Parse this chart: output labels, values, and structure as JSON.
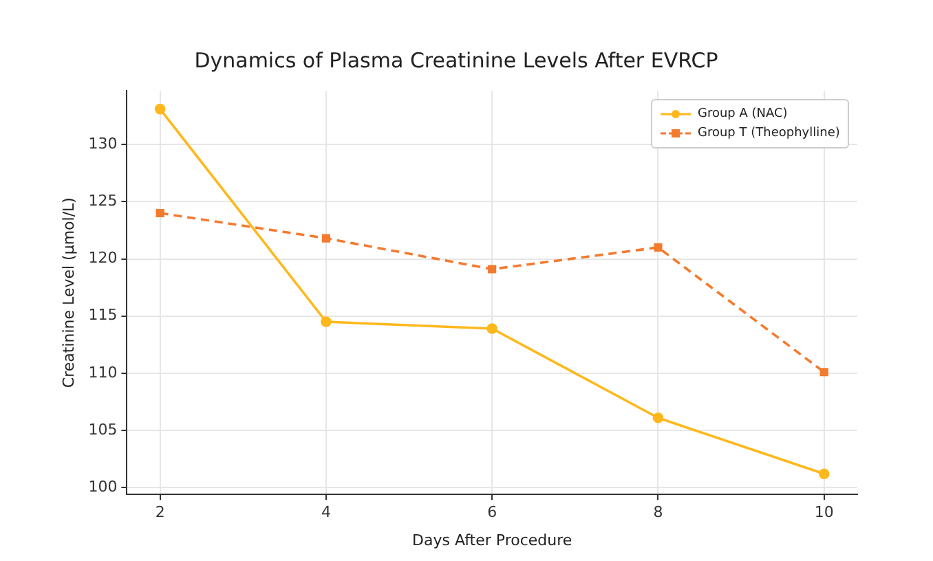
{
  "chart_data": {
    "type": "line",
    "title": "Dynamics of Plasma Creatinine Levels After EVRCP",
    "xlabel": "Days After Procedure",
    "ylabel": "Creatinine Level (µmol/L)",
    "x": [
      2,
      4,
      6,
      8,
      10
    ],
    "series": [
      {
        "name": "Group A (NAC)",
        "color": "#ffb81c",
        "values": [
          133.1,
          114.5,
          113.9,
          106.1,
          101.2
        ],
        "marker": "circle",
        "line_style": "solid"
      },
      {
        "name": "Group T (Theophylline)",
        "color": "#f47a2e",
        "values": [
          124,
          121.8,
          119.1,
          121,
          110.1
        ],
        "marker": "square",
        "line_style": "dashed"
      }
    ],
    "xlim": [
      1.6,
      10.4
    ],
    "xticks": [
      2,
      4,
      6,
      8,
      10
    ],
    "ylim": [
      99.4,
      134.7
    ],
    "yticks": [
      100,
      105,
      110,
      115,
      120,
      125,
      130
    ],
    "grid": true,
    "legend": "top right"
  }
}
